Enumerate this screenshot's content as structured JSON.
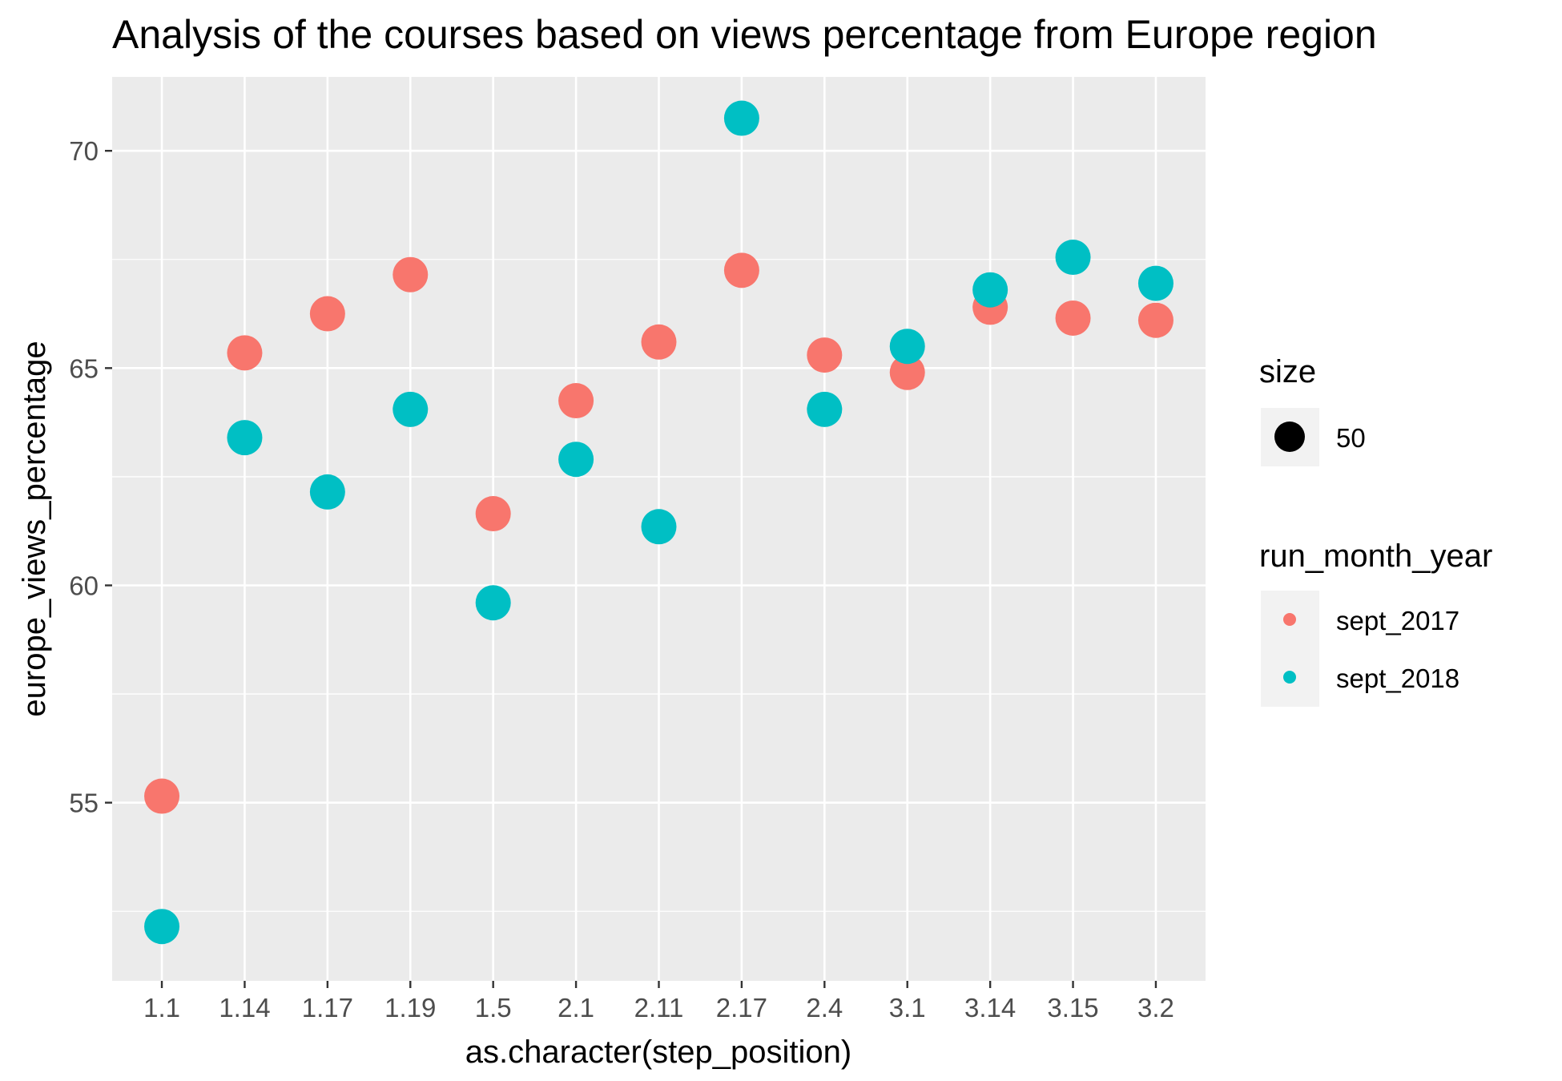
{
  "chart_data": {
    "type": "scatter",
    "title": "Analysis of the courses based on views percentage from Europe region",
    "xlabel": "as.character(step_position)",
    "ylabel": "europe_views_percentage",
    "categories": [
      "1.1",
      "1.14",
      "1.17",
      "1.19",
      "1.5",
      "2.1",
      "2.11",
      "2.17",
      "2.4",
      "3.1",
      "3.14",
      "3.15",
      "3.2"
    ],
    "ylim": [
      50.9,
      71.7
    ],
    "yticks": [
      55,
      60,
      65,
      70
    ],
    "grid": true,
    "series": [
      {
        "name": "sept_2017",
        "color": "#F8766D",
        "values": [
          55.15,
          65.35,
          66.25,
          67.15,
          61.65,
          64.25,
          65.6,
          67.25,
          65.3,
          64.9,
          66.4,
          66.15,
          66.1
        ]
      },
      {
        "name": "sept_2018",
        "color": "#00BFC4",
        "values": [
          52.15,
          63.4,
          62.15,
          64.05,
          59.6,
          62.9,
          61.35,
          70.75,
          64.05,
          65.5,
          66.8,
          67.55,
          66.95
        ]
      }
    ],
    "legend": {
      "placement": "right",
      "size_title": "size",
      "size_entries": [
        "50"
      ],
      "color_title": "run_month_year",
      "color_entries": [
        "sept_2017",
        "sept_2018"
      ]
    }
  }
}
